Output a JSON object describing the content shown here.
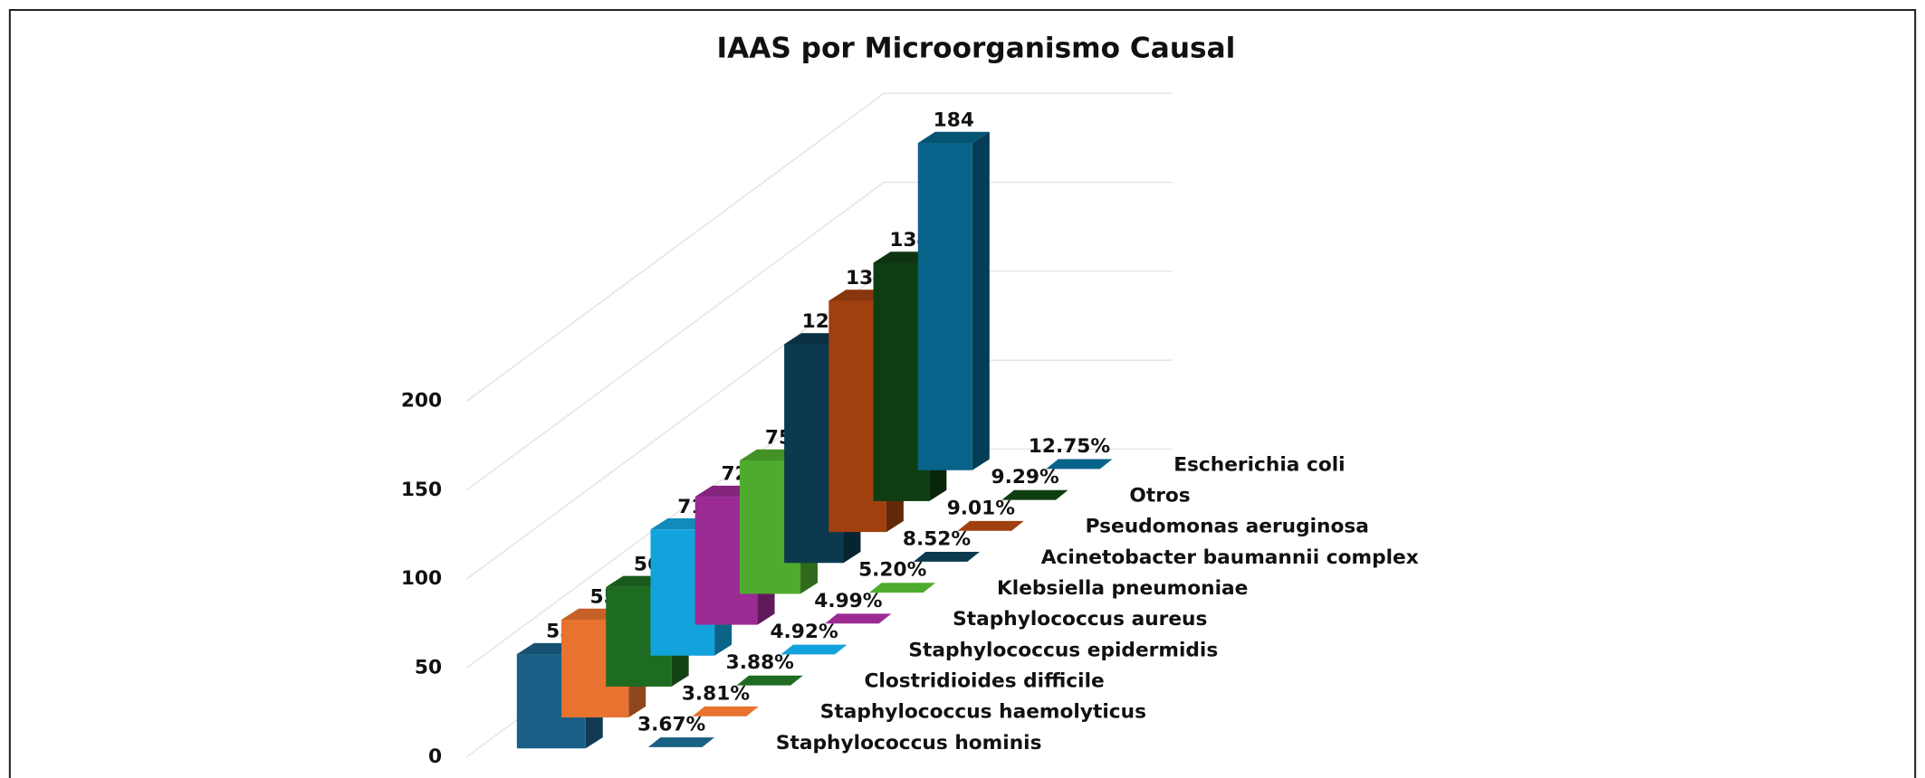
{
  "chart_data": {
    "type": "bar3d",
    "title": "IAAS por Microorganismo Causal",
    "categories": [
      "Staphylococcus hominis",
      "Staphylococcus haemolyticus",
      "Clostridioides difficile",
      "Staphylococcus epidermidis",
      "Staphylococcus aureus",
      "Klebsiella pneumoniae",
      "Acinetobacter baumannii complex",
      "Pseudomonas aeruginosa",
      "Otros",
      "Escherichia coli"
    ],
    "values": [
      53,
      55,
      56,
      71,
      72,
      75,
      123,
      130,
      134,
      184
    ],
    "shares": [
      3.67,
      3.81,
      3.88,
      4.92,
      4.99,
      5.2,
      8.52,
      9.01,
      9.29,
      12.75
    ],
    "share_labels": [
      "3.67%",
      "3.81%",
      "3.88%",
      "4.92%",
      "4.99%",
      "5.20%",
      "8.52%",
      "9.01%",
      "9.29%",
      "12.75%"
    ],
    "colors": [
      "#1a5f85",
      "#e8722f",
      "#1e6b22",
      "#13a3dc",
      "#9b2a93",
      "#4fab2e",
      "#0b3a4f",
      "#a0400f",
      "#0f3d12",
      "#076389"
    ],
    "ylim": [
      0,
      200
    ],
    "yticks": [
      0,
      50,
      100,
      150,
      200
    ],
    "grid": true
  }
}
